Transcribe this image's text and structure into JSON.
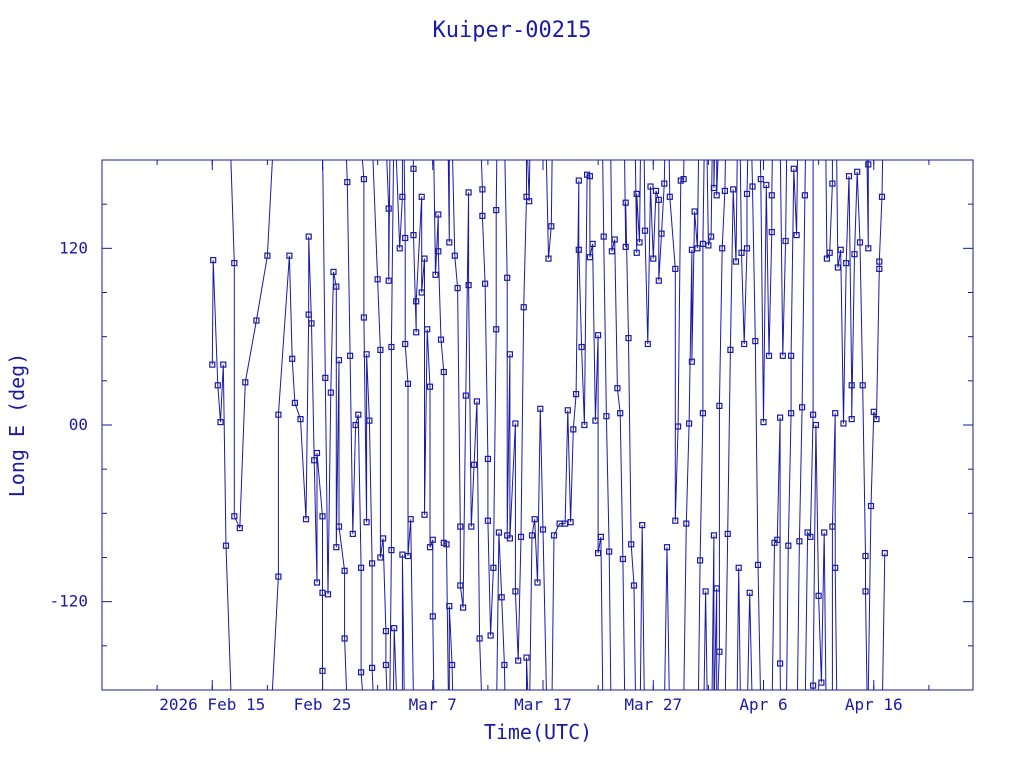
{
  "chart_data": {
    "type": "scatter",
    "title": "Kuiper-00215",
    "xlabel": "Time(UTC)",
    "ylabel": "Long E (deg)",
    "x_ticks": [
      {
        "date": "2026-02-15",
        "label": "2026 Feb 15"
      },
      {
        "date": "2026-02-25",
        "label": "Feb 25"
      },
      {
        "date": "2026-03-07",
        "label": "Mar  7"
      },
      {
        "date": "2026-03-17",
        "label": "Mar 17"
      },
      {
        "date": "2026-03-27",
        "label": "Mar 27"
      },
      {
        "date": "2026-04-06",
        "label": "Apr  6"
      },
      {
        "date": "2026-04-16",
        "label": "Apr 16"
      }
    ],
    "y_ticks": [
      {
        "value": 120,
        "label": "120"
      },
      {
        "value": 0,
        "label": "00"
      },
      {
        "value": -120,
        "label": "-120"
      }
    ],
    "xlim": [
      "2026-02-05T00:00",
      "2026-04-25T00:00"
    ],
    "ylim": [
      -180,
      180
    ],
    "grid": false,
    "points": [
      [
        "2026-02-15T00:00",
        41
      ],
      [
        "2026-02-15T02:00",
        112
      ],
      [
        "2026-02-15T12:00",
        27
      ],
      [
        "2026-02-15T18:00",
        2
      ],
      [
        "2026-02-16T00:00",
        41
      ],
      [
        "2026-02-16T06:00",
        -82
      ],
      [
        "2026-02-17T00:00",
        110
      ],
      [
        "2026-02-17T00:00",
        -62
      ],
      [
        "2026-02-17T12:00",
        -70
      ],
      [
        "2026-02-18T00:00",
        29
      ],
      [
        "2026-02-19T00:00",
        71
      ],
      [
        "2026-02-20T00:00",
        115
      ],
      [
        "2026-02-21T00:00",
        -103
      ],
      [
        "2026-02-21T00:00",
        7
      ],
      [
        "2026-02-22T00:00",
        115
      ],
      [
        "2026-02-22T06:00",
        45
      ],
      [
        "2026-02-22T12:00",
        15
      ],
      [
        "2026-02-23T00:00",
        4
      ],
      [
        "2026-02-23T12:00",
        -64
      ],
      [
        "2026-02-23T18:00",
        75
      ],
      [
        "2026-02-23T18:00",
        128
      ],
      [
        "2026-02-24T00:00",
        69
      ],
      [
        "2026-02-24T06:00",
        -24
      ],
      [
        "2026-02-24T12:00",
        -107
      ],
      [
        "2026-02-24T12:00",
        -19
      ],
      [
        "2026-02-25T00:00",
        -62
      ],
      [
        "2026-02-25T00:00",
        -114
      ],
      [
        "2026-02-25T00:00",
        -167
      ],
      [
        "2026-02-25T06:00",
        32
      ],
      [
        "2026-02-25T12:00",
        -115
      ],
      [
        "2026-02-25T18:00",
        22
      ],
      [
        "2026-02-26T00:00",
        104
      ],
      [
        "2026-02-26T06:00",
        94
      ],
      [
        "2026-02-26T06:00",
        -83
      ],
      [
        "2026-02-26T12:00",
        44
      ],
      [
        "2026-02-26T12:00",
        -69
      ],
      [
        "2026-02-27T00:00",
        -99
      ],
      [
        "2026-02-27T00:00",
        -145
      ],
      [
        "2026-02-27T06:00",
        165
      ],
      [
        "2026-02-27T12:00",
        47
      ],
      [
        "2026-02-27T18:00",
        -74
      ],
      [
        "2026-02-28T00:00",
        0
      ],
      [
        "2026-02-28T06:00",
        7
      ],
      [
        "2026-02-28T12:00",
        -97
      ],
      [
        "2026-02-28T12:00",
        -168
      ],
      [
        "2026-02-28T18:00",
        167
      ],
      [
        "2026-02-28T18:00",
        73
      ],
      [
        "2026-03-01T00:00",
        -66
      ],
      [
        "2026-03-01T00:00",
        48
      ],
      [
        "2026-03-01T06:00",
        3
      ],
      [
        "2026-03-01T12:00",
        -94
      ],
      [
        "2026-03-01T12:00",
        -165
      ],
      [
        "2026-03-02T00:00",
        99
      ],
      [
        "2026-03-02T06:00",
        51
      ],
      [
        "2026-03-02T06:00",
        -90
      ],
      [
        "2026-03-02T12:00",
        -77
      ],
      [
        "2026-03-02T18:00",
        -140
      ],
      [
        "2026-03-02T18:00",
        -163
      ],
      [
        "2026-03-03T00:00",
        147
      ],
      [
        "2026-03-03T00:00",
        98
      ],
      [
        "2026-03-03T06:00",
        -85
      ],
      [
        "2026-03-03T06:00",
        53
      ],
      [
        "2026-03-03T12:00",
        -138
      ],
      [
        "2026-03-04T00:00",
        120
      ],
      [
        "2026-03-04T06:00",
        155
      ],
      [
        "2026-03-04T06:00",
        -88
      ],
      [
        "2026-03-04T12:00",
        127
      ],
      [
        "2026-03-04T12:00",
        55
      ],
      [
        "2026-03-04T18:00",
        28
      ],
      [
        "2026-03-04T18:00",
        -89
      ],
      [
        "2026-03-05T00:00",
        -64
      ],
      [
        "2026-03-05T06:00",
        174
      ],
      [
        "2026-03-05T06:00",
        129
      ],
      [
        "2026-03-05T12:00",
        63
      ],
      [
        "2026-03-05T12:00",
        84
      ],
      [
        "2026-03-06T00:00",
        155
      ],
      [
        "2026-03-06T00:00",
        90
      ],
      [
        "2026-03-06T06:00",
        113
      ],
      [
        "2026-03-06T06:00",
        -61
      ],
      [
        "2026-03-06T12:00",
        65
      ],
      [
        "2026-03-06T18:00",
        26
      ],
      [
        "2026-03-06T18:00",
        -83
      ],
      [
        "2026-03-07T00:00",
        -78
      ],
      [
        "2026-03-07T00:00",
        -130
      ],
      [
        "2026-03-07T06:00",
        102
      ],
      [
        "2026-03-07T12:00",
        143
      ],
      [
        "2026-03-07T12:00",
        118
      ],
      [
        "2026-03-07T18:00",
        58
      ],
      [
        "2026-03-08T00:00",
        36
      ],
      [
        "2026-03-08T00:00",
        -80
      ],
      [
        "2026-03-08T06:00",
        -81
      ],
      [
        "2026-03-08T12:00",
        124
      ],
      [
        "2026-03-08T12:00",
        -123
      ],
      [
        "2026-03-08T18:00",
        -163
      ],
      [
        "2026-03-09T00:00",
        115
      ],
      [
        "2026-03-09T06:00",
        93
      ],
      [
        "2026-03-09T12:00",
        -69
      ],
      [
        "2026-03-09T12:00",
        -109
      ],
      [
        "2026-03-09T18:00",
        -124
      ],
      [
        "2026-03-10T00:00",
        20
      ],
      [
        "2026-03-10T06:00",
        158
      ],
      [
        "2026-03-10T06:00",
        95
      ],
      [
        "2026-03-10T12:00",
        -69
      ],
      [
        "2026-03-10T18:00",
        -27
      ],
      [
        "2026-03-11T00:00",
        16
      ],
      [
        "2026-03-11T06:00",
        -145
      ],
      [
        "2026-03-11T12:00",
        160
      ],
      [
        "2026-03-11T12:00",
        142
      ],
      [
        "2026-03-11T18:00",
        96
      ],
      [
        "2026-03-12T00:00",
        -23
      ],
      [
        "2026-03-12T00:00",
        -65
      ],
      [
        "2026-03-12T06:00",
        -143
      ],
      [
        "2026-03-12T12:00",
        -97
      ],
      [
        "2026-03-12T18:00",
        65
      ],
      [
        "2026-03-12T18:00",
        146
      ],
      [
        "2026-03-13T00:00",
        -73
      ],
      [
        "2026-03-13T06:00",
        -117
      ],
      [
        "2026-03-13T12:00",
        -163
      ],
      [
        "2026-03-13T18:00",
        100
      ],
      [
        "2026-03-13T18:00",
        -75
      ],
      [
        "2026-03-14T00:00",
        48
      ],
      [
        "2026-03-14T00:00",
        -77
      ],
      [
        "2026-03-14T12:00",
        1
      ],
      [
        "2026-03-14T12:00",
        -113
      ],
      [
        "2026-03-14T18:00",
        -160
      ],
      [
        "2026-03-15T00:00",
        -76
      ],
      [
        "2026-03-15T06:00",
        80
      ],
      [
        "2026-03-15T12:00",
        155
      ],
      [
        "2026-03-15T12:00",
        -158
      ],
      [
        "2026-03-15T18:00",
        152
      ],
      [
        "2026-03-16T00:00",
        -75
      ],
      [
        "2026-03-16T06:00",
        -64
      ],
      [
        "2026-03-16T12:00",
        -107
      ],
      [
        "2026-03-16T18:00",
        11
      ],
      [
        "2026-03-17T00:00",
        -71
      ],
      [
        "2026-03-17T12:00",
        113
      ],
      [
        "2026-03-17T18:00",
        135
      ],
      [
        "2026-03-18T00:00",
        -75
      ],
      [
        "2026-03-18T12:00",
        -67
      ],
      [
        "2026-03-19T00:00",
        -67
      ],
      [
        "2026-03-19T06:00",
        10
      ],
      [
        "2026-03-19T12:00",
        -66
      ],
      [
        "2026-03-19T18:00",
        -3
      ],
      [
        "2026-03-20T00:00",
        21
      ],
      [
        "2026-03-20T06:00",
        166
      ],
      [
        "2026-03-20T06:00",
        119
      ],
      [
        "2026-03-20T12:00",
        53
      ],
      [
        "2026-03-20T18:00",
        0
      ],
      [
        "2026-03-21T00:00",
        170
      ],
      [
        "2026-03-21T06:00",
        169
      ],
      [
        "2026-03-21T06:00",
        114
      ],
      [
        "2026-03-21T12:00",
        123
      ],
      [
        "2026-03-21T18:00",
        3
      ],
      [
        "2026-03-22T00:00",
        61
      ],
      [
        "2026-03-22T00:00",
        -87
      ],
      [
        "2026-03-22T06:00",
        -76
      ],
      [
        "2026-03-22T12:00",
        128
      ],
      [
        "2026-03-22T18:00",
        6
      ],
      [
        "2026-03-23T00:00",
        -86
      ],
      [
        "2026-03-23T06:00",
        118
      ],
      [
        "2026-03-23T12:00",
        126
      ],
      [
        "2026-03-23T18:00",
        25
      ],
      [
        "2026-03-24T00:00",
        8
      ],
      [
        "2026-03-24T06:00",
        -91
      ],
      [
        "2026-03-24T12:00",
        121
      ],
      [
        "2026-03-24T12:00",
        151
      ],
      [
        "2026-03-24T18:00",
        59
      ],
      [
        "2026-03-25T00:00",
        -81
      ],
      [
        "2026-03-25T06:00",
        -109
      ],
      [
        "2026-03-25T12:00",
        117
      ],
      [
        "2026-03-25T12:00",
        157
      ],
      [
        "2026-03-25T18:00",
        124
      ],
      [
        "2026-03-26T00:00",
        -68
      ],
      [
        "2026-03-26T06:00",
        132
      ],
      [
        "2026-03-26T12:00",
        55
      ],
      [
        "2026-03-26T18:00",
        162
      ],
      [
        "2026-03-27T00:00",
        113
      ],
      [
        "2026-03-27T06:00",
        159
      ],
      [
        "2026-03-27T12:00",
        153
      ],
      [
        "2026-03-27T12:00",
        98
      ],
      [
        "2026-03-27T18:00",
        130
      ],
      [
        "2026-03-28T00:00",
        164
      ],
      [
        "2026-03-28T06:00",
        -83
      ],
      [
        "2026-03-28T12:00",
        155
      ],
      [
        "2026-03-29T00:00",
        106
      ],
      [
        "2026-03-29T00:00",
        -65
      ],
      [
        "2026-03-29T06:00",
        -1
      ],
      [
        "2026-03-29T12:00",
        166
      ],
      [
        "2026-03-29T18:00",
        167
      ],
      [
        "2026-03-30T00:00",
        -67
      ],
      [
        "2026-03-30T06:00",
        1
      ],
      [
        "2026-03-30T12:00",
        119
      ],
      [
        "2026-03-30T12:00",
        43
      ],
      [
        "2026-03-30T18:00",
        145
      ],
      [
        "2026-03-31T00:00",
        120
      ],
      [
        "2026-03-31T06:00",
        -92
      ],
      [
        "2026-03-31T12:00",
        8
      ],
      [
        "2026-03-31T12:00",
        123
      ],
      [
        "2026-03-31T18:00",
        -113
      ],
      [
        "2026-04-01T00:00",
        122
      ],
      [
        "2026-04-01T06:00",
        128
      ],
      [
        "2026-04-01T12:00",
        -75
      ],
      [
        "2026-04-01T12:00",
        161
      ],
      [
        "2026-04-01T18:00",
        -111
      ],
      [
        "2026-04-01T18:00",
        156
      ],
      [
        "2026-04-02T00:00",
        -154
      ],
      [
        "2026-04-02T00:00",
        13
      ],
      [
        "2026-04-02T06:00",
        120
      ],
      [
        "2026-04-02T12:00",
        159
      ],
      [
        "2026-04-02T18:00",
        -74
      ],
      [
        "2026-04-03T00:00",
        51
      ],
      [
        "2026-04-03T06:00",
        160
      ],
      [
        "2026-04-03T12:00",
        111
      ],
      [
        "2026-04-03T18:00",
        -97
      ],
      [
        "2026-04-04T00:00",
        117
      ],
      [
        "2026-04-04T06:00",
        55
      ],
      [
        "2026-04-04T12:00",
        120
      ],
      [
        "2026-04-04T12:00",
        157
      ],
      [
        "2026-04-04T18:00",
        -114
      ],
      [
        "2026-04-05T00:00",
        162
      ],
      [
        "2026-04-05T06:00",
        57
      ],
      [
        "2026-04-05T12:00",
        -95
      ],
      [
        "2026-04-05T18:00",
        167
      ],
      [
        "2026-04-06T00:00",
        2
      ],
      [
        "2026-04-06T06:00",
        163
      ],
      [
        "2026-04-06T12:00",
        47
      ],
      [
        "2026-04-06T18:00",
        131
      ],
      [
        "2026-04-06T18:00",
        156
      ],
      [
        "2026-04-07T00:00",
        -80
      ],
      [
        "2026-04-07T06:00",
        -78
      ],
      [
        "2026-04-07T12:00",
        5
      ],
      [
        "2026-04-07T12:00",
        -162
      ],
      [
        "2026-04-07T18:00",
        47
      ],
      [
        "2026-04-08T00:00",
        125
      ],
      [
        "2026-04-08T06:00",
        -82
      ],
      [
        "2026-04-08T12:00",
        8
      ],
      [
        "2026-04-08T12:00",
        47
      ],
      [
        "2026-04-08T18:00",
        174
      ],
      [
        "2026-04-09T00:00",
        129
      ],
      [
        "2026-04-09T06:00",
        -79
      ],
      [
        "2026-04-09T12:00",
        12
      ],
      [
        "2026-04-09T18:00",
        156
      ],
      [
        "2026-04-10T00:00",
        -73
      ],
      [
        "2026-04-10T06:00",
        -76
      ],
      [
        "2026-04-10T12:00",
        7
      ],
      [
        "2026-04-10T12:00",
        -177
      ],
      [
        "2026-04-10T18:00",
        0
      ],
      [
        "2026-04-11T00:00",
        -116
      ],
      [
        "2026-04-11T06:00",
        -175
      ],
      [
        "2026-04-11T12:00",
        -73
      ],
      [
        "2026-04-11T18:00",
        113
      ],
      [
        "2026-04-12T00:00",
        117
      ],
      [
        "2026-04-12T06:00",
        164
      ],
      [
        "2026-04-12T06:00",
        -69
      ],
      [
        "2026-04-12T12:00",
        8
      ],
      [
        "2026-04-12T12:00",
        -97
      ],
      [
        "2026-04-12T18:00",
        107
      ],
      [
        "2026-04-13T00:00",
        119
      ],
      [
        "2026-04-13T06:00",
        1
      ],
      [
        "2026-04-13T12:00",
        110
      ],
      [
        "2026-04-13T18:00",
        169
      ],
      [
        "2026-04-14T00:00",
        27
      ],
      [
        "2026-04-14T00:00",
        4
      ],
      [
        "2026-04-14T06:00",
        116
      ],
      [
        "2026-04-14T12:00",
        172
      ],
      [
        "2026-04-14T18:00",
        124
      ],
      [
        "2026-04-15T00:00",
        27
      ],
      [
        "2026-04-15T06:00",
        -89
      ],
      [
        "2026-04-15T06:00",
        -113
      ],
      [
        "2026-04-15T12:00",
        120
      ],
      [
        "2026-04-15T12:00",
        177
      ],
      [
        "2026-04-15T18:00",
        -55
      ],
      [
        "2026-04-16T00:00",
        9
      ],
      [
        "2026-04-16T06:00",
        4
      ],
      [
        "2026-04-16T12:00",
        106
      ],
      [
        "2026-04-16T12:00",
        111
      ],
      [
        "2026-04-16T18:00",
        155
      ],
      [
        "2026-04-17T00:00",
        -87
      ]
    ]
  }
}
